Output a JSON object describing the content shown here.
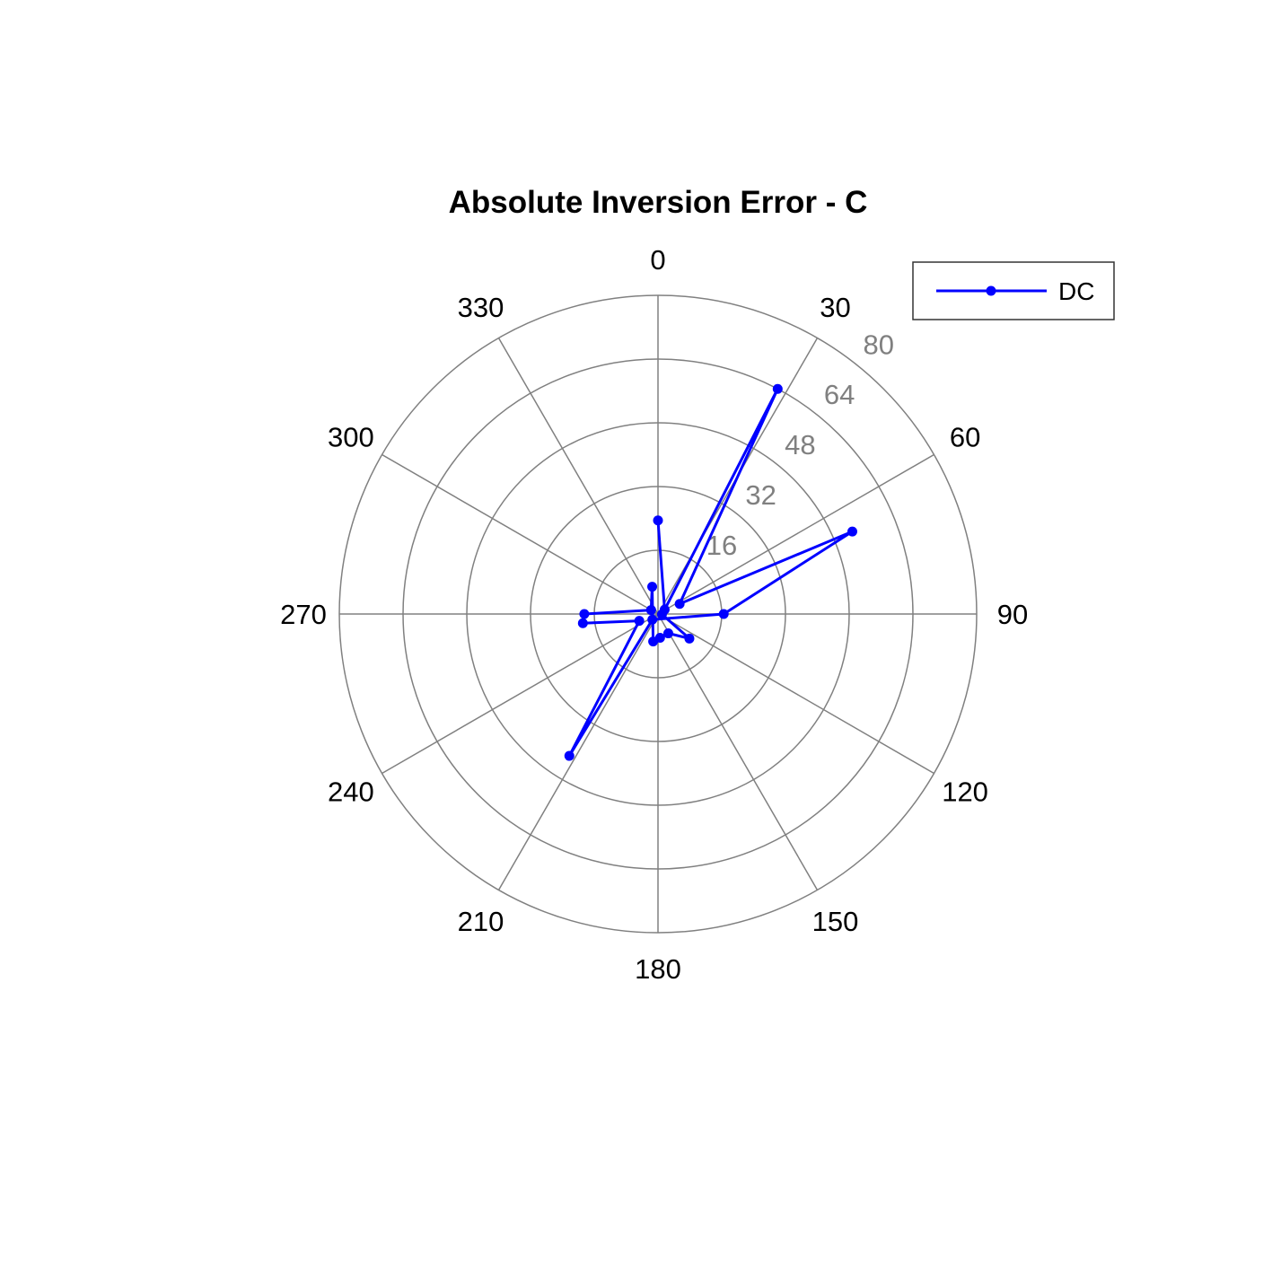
{
  "chart_data": {
    "type": "polar-line",
    "title": "Absolute Inversion Error - C",
    "theta_unit": "degrees",
    "theta_zero": "top",
    "theta_direction": "clockwise",
    "theta_ticks": [
      0,
      30,
      60,
      90,
      120,
      150,
      180,
      210,
      240,
      270,
      300,
      330
    ],
    "theta_tick_labels": [
      "0",
      "30",
      "60",
      "90",
      "120",
      "150",
      "180",
      "210",
      "240",
      "270",
      "300",
      "330"
    ],
    "r_ticks": [
      16,
      32,
      48,
      64,
      80
    ],
    "r_tick_labels": [
      "16",
      "32",
      "48",
      "64",
      "80"
    ],
    "rlim": [
      0,
      80
    ],
    "grid": true,
    "legend_position": "top-right",
    "colors": {
      "series": "#0000ff",
      "grid": "#808080",
      "text": "#000000"
    },
    "series": [
      {
        "name": "DC",
        "marker": "dot",
        "points": [
          {
            "theta": 0,
            "r": 23.5
          },
          {
            "theta": 57,
            "r": 2
          },
          {
            "theta": 28,
            "r": 64
          },
          {
            "theta": 65,
            "r": 6
          },
          {
            "theta": 67,
            "r": 53
          },
          {
            "theta": 90,
            "r": 16.5
          },
          {
            "theta": 225,
            "r": 2
          },
          {
            "theta": 212,
            "r": 42
          },
          {
            "theta": 250,
            "r": 5
          },
          {
            "theta": 263,
            "r": 19
          },
          {
            "theta": 270,
            "r": 18.5
          },
          {
            "theta": 300,
            "r": 2
          },
          {
            "theta": 348,
            "r": 7
          },
          {
            "theta": 190,
            "r": 7
          },
          {
            "theta": 175,
            "r": 6
          },
          {
            "theta": 152,
            "r": 5.5
          },
          {
            "theta": 128,
            "r": 10
          },
          {
            "theta": 95,
            "r": 1
          }
        ]
      }
    ]
  }
}
